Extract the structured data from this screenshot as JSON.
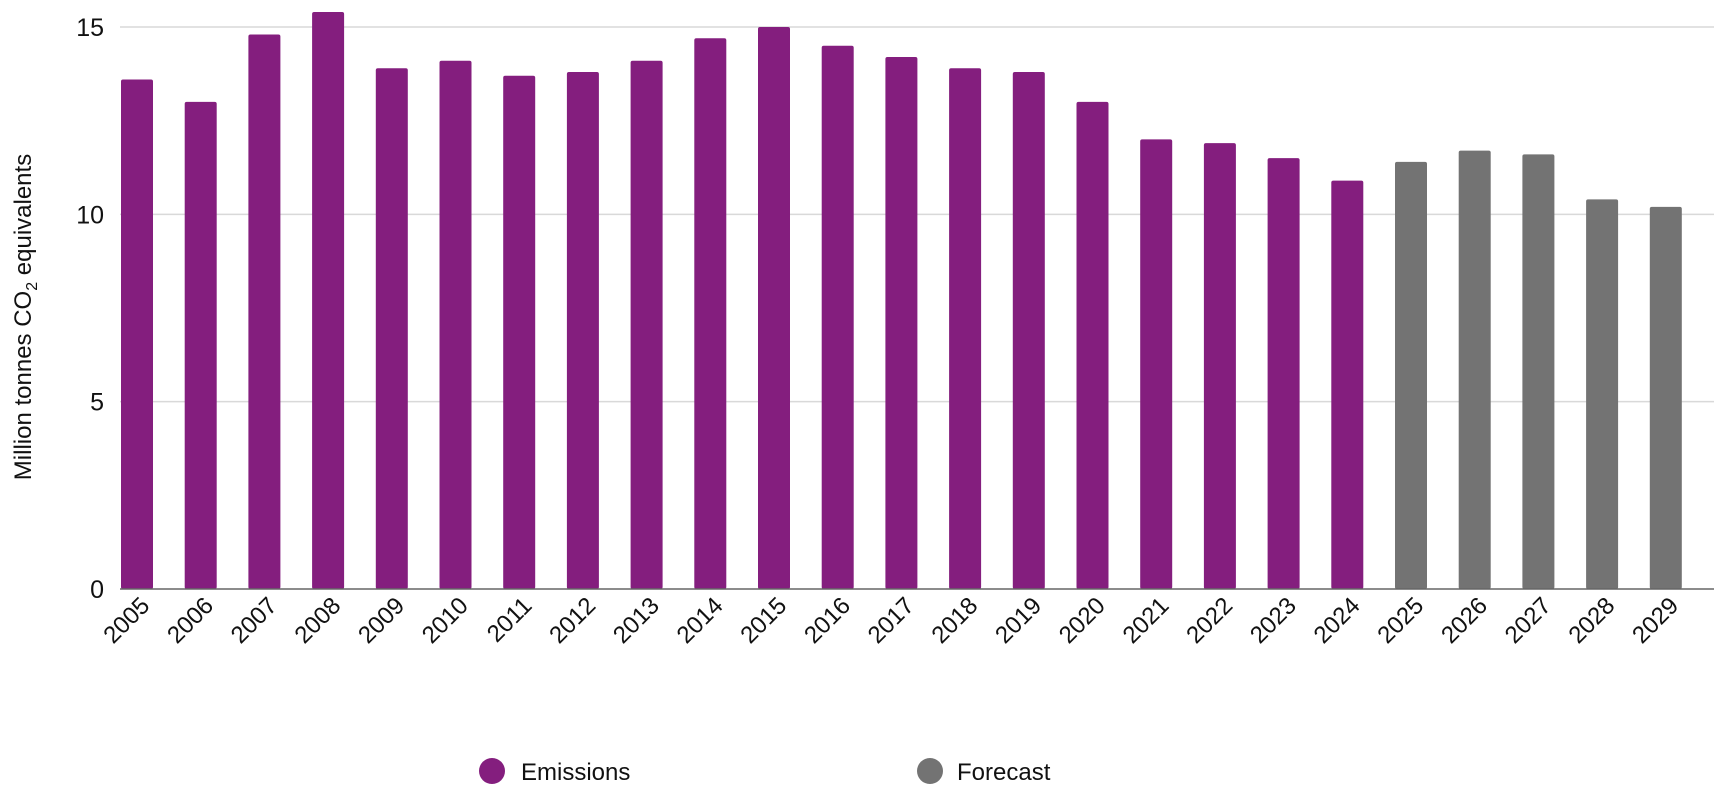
{
  "chart_data": {
    "type": "bar",
    "title": "",
    "ylabel": "Million tonnes CO2 equivalents",
    "ylabel_parts": {
      "before": "Million tonnes CO",
      "sub": "2",
      "after": " equivalents"
    },
    "xlabel": "",
    "ylim": [
      0,
      15
    ],
    "yticks": [
      0,
      5,
      10,
      15
    ],
    "grid": true,
    "legend_placement": "bottom",
    "categories": [
      "2005",
      "2006",
      "2007",
      "2008",
      "2009",
      "2010",
      "2011",
      "2012",
      "2013",
      "2014",
      "2015",
      "2016",
      "2017",
      "2018",
      "2019",
      "2020",
      "2021",
      "2022",
      "2023",
      "2024",
      "2025",
      "2026",
      "2027",
      "2028",
      "2029"
    ],
    "values": [
      13.6,
      13.0,
      14.8,
      15.4,
      13.9,
      14.1,
      13.7,
      13.8,
      14.1,
      14.7,
      15.0,
      14.5,
      14.2,
      13.9,
      13.8,
      13.0,
      12.0,
      11.9,
      11.5,
      10.9,
      11.4,
      11.7,
      11.6,
      10.4,
      10.2
    ],
    "series": [
      {
        "name": "Emissions",
        "color": "#841E7E",
        "from": "2005",
        "to": "2024"
      },
      {
        "name": "Forecast",
        "color": "#737373",
        "from": "2025",
        "to": "2029"
      }
    ]
  }
}
